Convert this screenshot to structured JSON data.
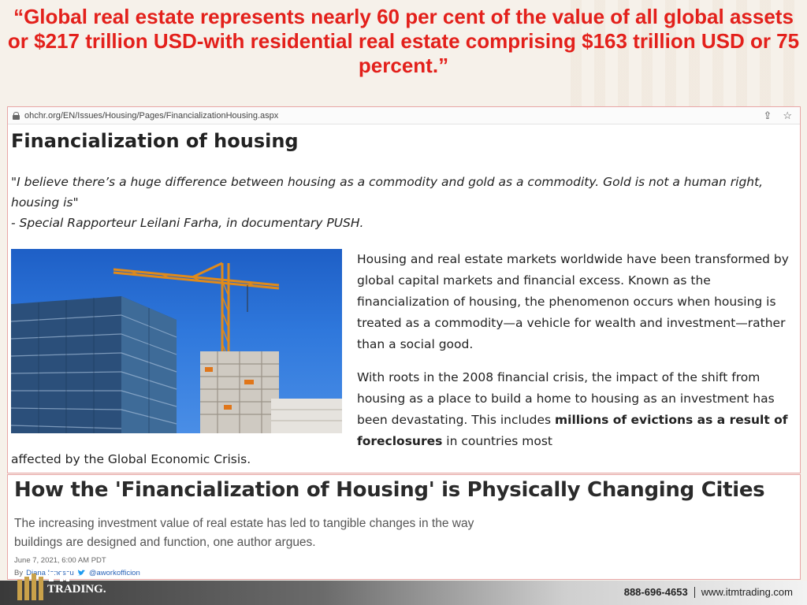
{
  "headline": "“Global real estate represents nearly 60 per cent of the value of all global assets or $217 trillion USD-with residential real estate comprising $163 trillion USD or 75 percent.”",
  "browser": {
    "url": "ohchr.org/EN/Issues/Housing/Pages/FinancializationHousing.aspx",
    "icons": [
      "lock-icon",
      "share-icon",
      "star-icon"
    ]
  },
  "page": {
    "title": "Financialization of housing",
    "quote_line1": "\"I believe there’s a huge difference between housing as a commodity and gold as a commodity. Gold is not a human right, housing is\"",
    "quote_line2": "- Special Rapporteur Leilani Farha, in documentary PUSH.",
    "para1": "Housing and real estate markets worldwide have been transformed by global capital markets and financial excess. Known as the financialization of housing, the phenomenon occurs when housing is treated as a commodity—a vehicle for wealth and investment—rather than a social good.",
    "para2_start": "With roots in the 2008 financial crisis, the impact of the shift from housing as a place to build a home to housing as an investment has been devastating. This includes ",
    "para2_bold": "millions of evictions as a result of foreclosures",
    "para2_end": " in countries most",
    "para2_tail": "affected by the Global Economic Crisis."
  },
  "article": {
    "title": "How the 'Financialization of Housing' is Physically Changing Cities",
    "dek": "The increasing investment value of real estate has led to tangible changes in the way buildings are designed and function, one author argues.",
    "date": "June 7, 2021, 6:00 AM PDT",
    "by_label": "By",
    "author": "Diana Ionescu",
    "handle": "@aworkofficion"
  },
  "footer": {
    "brand": "TRADING.",
    "phone": "888-696-4653",
    "website": "www.itmtrading.com"
  },
  "colors": {
    "headline_red": "#e3201b",
    "sky_blue": "#2f78dc",
    "link_blue": "#2a64b8"
  }
}
